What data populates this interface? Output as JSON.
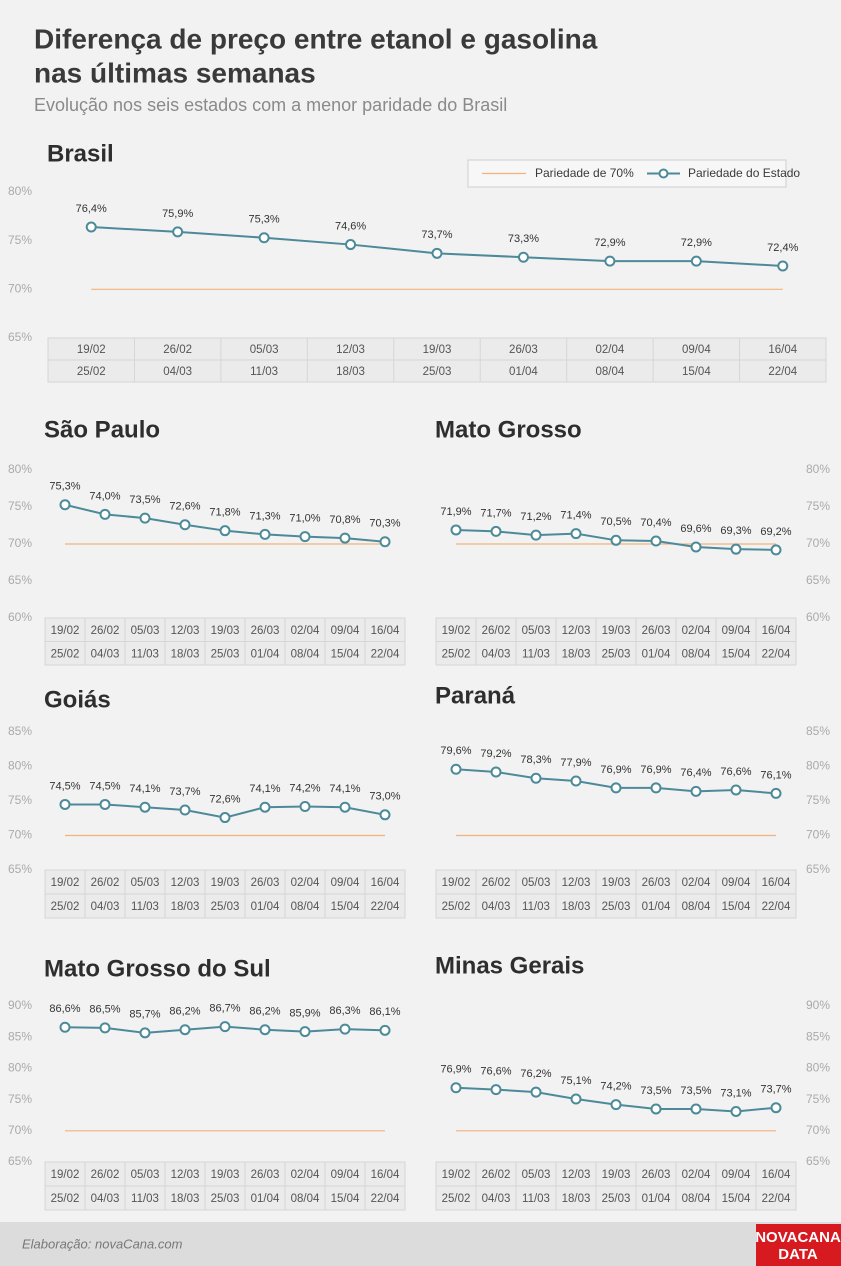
{
  "title": [
    "Diferença de preço entre etanol e gasolina",
    "nas últimas semanas"
  ],
  "subtitle": "Evolução nos seis estados com a menor paridade do Brasil",
  "footer": {
    "source": "Elaboração: novaCana.com",
    "logo": [
      "NOVACANA",
      "DATA"
    ]
  },
  "chart_data": [
    {
      "type": "line",
      "title": "Brasil",
      "legend": {
        "reference": "Pariedade de 70%",
        "series": "Pariedade do Estado",
        "position": "top-right"
      },
      "categories": [
        [
          "19/02",
          "25/02"
        ],
        [
          "26/02",
          "04/03"
        ],
        [
          "05/03",
          "11/03"
        ],
        [
          "12/03",
          "18/03"
        ],
        [
          "19/03",
          "25/03"
        ],
        [
          "26/03",
          "01/04"
        ],
        [
          "02/04",
          "08/04"
        ],
        [
          "09/04",
          "15/04"
        ],
        [
          "16/04",
          "22/04"
        ]
      ],
      "values": [
        76.4,
        75.9,
        75.3,
        74.6,
        73.7,
        73.3,
        72.9,
        72.9,
        72.4
      ],
      "value_labels": [
        "76,4%",
        "75,9%",
        "75,3%",
        "74,6%",
        "73,7%",
        "73,3%",
        "72,9%",
        "72,9%",
        "72,4%"
      ],
      "color": "#4d8a99",
      "reference_line": 70,
      "reference_color": "#f2b27a",
      "ylim": [
        65,
        80
      ],
      "yticks": [
        {
          "value": 65,
          "label": "65%"
        },
        {
          "value": 70,
          "label": "70%"
        },
        {
          "value": 75,
          "label": "75%"
        },
        {
          "value": 80,
          "label": "80%"
        }
      ]
    },
    {
      "type": "line",
      "title": "São Paulo",
      "categories": [
        [
          "19/02",
          "25/02"
        ],
        [
          "26/02",
          "04/03"
        ],
        [
          "05/03",
          "11/03"
        ],
        [
          "12/03",
          "18/03"
        ],
        [
          "19/03",
          "25/03"
        ],
        [
          "26/03",
          "01/04"
        ],
        [
          "02/04",
          "08/04"
        ],
        [
          "09/04",
          "15/04"
        ],
        [
          "16/04",
          "22/04"
        ]
      ],
      "values": [
        75.3,
        74.0,
        73.5,
        72.6,
        71.8,
        71.3,
        71.0,
        70.8,
        70.3
      ],
      "value_labels": [
        "75,3%",
        "74,0%",
        "73,5%",
        "72,6%",
        "71,8%",
        "71,3%",
        "71,0%",
        "70,8%",
        "70,3%"
      ],
      "color": "#4d8a99",
      "reference_line": 70,
      "reference_color": "#f2b27a",
      "ylim": [
        60,
        80
      ],
      "yticks": [
        {
          "value": 60,
          "label": "60%"
        },
        {
          "value": 65,
          "label": "65%"
        },
        {
          "value": 70,
          "label": "70%"
        },
        {
          "value": 75,
          "label": "75%"
        },
        {
          "value": 80,
          "label": "80%"
        }
      ]
    },
    {
      "type": "line",
      "title": "Mato Grosso",
      "categories": [
        [
          "19/02",
          "25/02"
        ],
        [
          "26/02",
          "04/03"
        ],
        [
          "05/03",
          "11/03"
        ],
        [
          "12/03",
          "18/03"
        ],
        [
          "19/03",
          "25/03"
        ],
        [
          "26/03",
          "01/04"
        ],
        [
          "02/04",
          "08/04"
        ],
        [
          "09/04",
          "15/04"
        ],
        [
          "16/04",
          "22/04"
        ]
      ],
      "values": [
        71.9,
        71.7,
        71.2,
        71.4,
        70.5,
        70.4,
        69.6,
        69.3,
        69.2
      ],
      "value_labels": [
        "71,9%",
        "71,7%",
        "71,2%",
        "71,4%",
        "70,5%",
        "70,4%",
        "69,6%",
        "69,3%",
        "69,2%"
      ],
      "color": "#4d8a99",
      "reference_line": 70,
      "reference_color": "#f2b27a",
      "ylim": [
        60,
        80
      ],
      "yticks": [
        {
          "value": 60,
          "label": "60%"
        },
        {
          "value": 65,
          "label": "65%"
        },
        {
          "value": 70,
          "label": "70%"
        },
        {
          "value": 75,
          "label": "75%"
        },
        {
          "value": 80,
          "label": "80%"
        }
      ]
    },
    {
      "type": "line",
      "title": "Goiás",
      "categories": [
        [
          "19/02",
          "25/02"
        ],
        [
          "26/02",
          "04/03"
        ],
        [
          "05/03",
          "11/03"
        ],
        [
          "12/03",
          "18/03"
        ],
        [
          "19/03",
          "25/03"
        ],
        [
          "26/03",
          "01/04"
        ],
        [
          "02/04",
          "08/04"
        ],
        [
          "09/04",
          "15/04"
        ],
        [
          "16/04",
          "22/04"
        ]
      ],
      "values": [
        74.5,
        74.5,
        74.1,
        73.7,
        72.6,
        74.1,
        74.2,
        74.1,
        73.0
      ],
      "value_labels": [
        "74,5%",
        "74,5%",
        "74,1%",
        "73,7%",
        "72,6%",
        "74,1%",
        "74,2%",
        "74,1%",
        "73,0%"
      ],
      "color": "#4d8a99",
      "reference_line": 70,
      "reference_color": "#f2b27a",
      "ylim": [
        65,
        85
      ],
      "yticks": [
        {
          "value": 65,
          "label": "65%"
        },
        {
          "value": 70,
          "label": "70%"
        },
        {
          "value": 75,
          "label": "75%"
        },
        {
          "value": 80,
          "label": "80%"
        },
        {
          "value": 85,
          "label": "85%"
        }
      ]
    },
    {
      "type": "line",
      "title": "Paraná",
      "categories": [
        [
          "19/02",
          "25/02"
        ],
        [
          "26/02",
          "04/03"
        ],
        [
          "05/03",
          "11/03"
        ],
        [
          "12/03",
          "18/03"
        ],
        [
          "19/03",
          "25/03"
        ],
        [
          "26/03",
          "01/04"
        ],
        [
          "02/04",
          "08/04"
        ],
        [
          "09/04",
          "15/04"
        ],
        [
          "16/04",
          "22/04"
        ]
      ],
      "values": [
        79.6,
        79.2,
        78.3,
        77.9,
        76.9,
        76.9,
        76.4,
        76.6,
        76.1
      ],
      "value_labels": [
        "79,6%",
        "79,2%",
        "78,3%",
        "77,9%",
        "76,9%",
        "76,9%",
        "76,4%",
        "76,6%",
        "76,1%"
      ],
      "color": "#4d8a99",
      "reference_line": 70,
      "reference_color": "#f2b27a",
      "ylim": [
        65,
        85
      ],
      "yticks": [
        {
          "value": 65,
          "label": "65%"
        },
        {
          "value": 70,
          "label": "70%"
        },
        {
          "value": 75,
          "label": "75%"
        },
        {
          "value": 80,
          "label": "80%"
        },
        {
          "value": 85,
          "label": "85%"
        }
      ]
    },
    {
      "type": "line",
      "title": "Mato Grosso do Sul",
      "categories": [
        [
          "19/02",
          "25/02"
        ],
        [
          "26/02",
          "04/03"
        ],
        [
          "05/03",
          "11/03"
        ],
        [
          "12/03",
          "18/03"
        ],
        [
          "19/03",
          "25/03"
        ],
        [
          "26/03",
          "01/04"
        ],
        [
          "02/04",
          "08/04"
        ],
        [
          "09/04",
          "15/04"
        ],
        [
          "16/04",
          "22/04"
        ]
      ],
      "values": [
        86.6,
        86.5,
        85.7,
        86.2,
        86.7,
        86.2,
        85.9,
        86.3,
        86.1
      ],
      "value_labels": [
        "86,6%",
        "86,5%",
        "85,7%",
        "86,2%",
        "86,7%",
        "86,2%",
        "85,9%",
        "86,3%",
        "86,1%"
      ],
      "color": "#4d8a99",
      "reference_line": 70,
      "reference_color": "#f2b27a",
      "ylim": [
        65,
        90
      ],
      "yticks": [
        {
          "value": 65,
          "label": "65%"
        },
        {
          "value": 70,
          "label": "70%"
        },
        {
          "value": 75,
          "label": "75%"
        },
        {
          "value": 80,
          "label": "80%"
        },
        {
          "value": 85,
          "label": "85%"
        },
        {
          "value": 90,
          "label": "90%"
        }
      ]
    },
    {
      "type": "line",
      "title": "Minas Gerais",
      "categories": [
        [
          "19/02",
          "25/02"
        ],
        [
          "26/02",
          "04/03"
        ],
        [
          "05/03",
          "11/03"
        ],
        [
          "12/03",
          "18/03"
        ],
        [
          "19/03",
          "25/03"
        ],
        [
          "26/03",
          "01/04"
        ],
        [
          "02/04",
          "08/04"
        ],
        [
          "09/04",
          "15/04"
        ],
        [
          "16/04",
          "22/04"
        ]
      ],
      "values": [
        76.9,
        76.6,
        76.2,
        75.1,
        74.2,
        73.5,
        73.5,
        73.1,
        73.7
      ],
      "value_labels": [
        "76,9%",
        "76,6%",
        "76,2%",
        "75,1%",
        "74,2%",
        "73,5%",
        "73,5%",
        "73,1%",
        "73,7%"
      ],
      "color": "#4d8a99",
      "reference_line": 70,
      "reference_color": "#f2b27a",
      "ylim": [
        65,
        90
      ],
      "yticks": [
        {
          "value": 65,
          "label": "65%"
        },
        {
          "value": 70,
          "label": "70%"
        },
        {
          "value": 75,
          "label": "75%"
        },
        {
          "value": 80,
          "label": "80%"
        },
        {
          "value": 85,
          "label": "85%"
        },
        {
          "value": 90,
          "label": "90%"
        }
      ]
    }
  ]
}
